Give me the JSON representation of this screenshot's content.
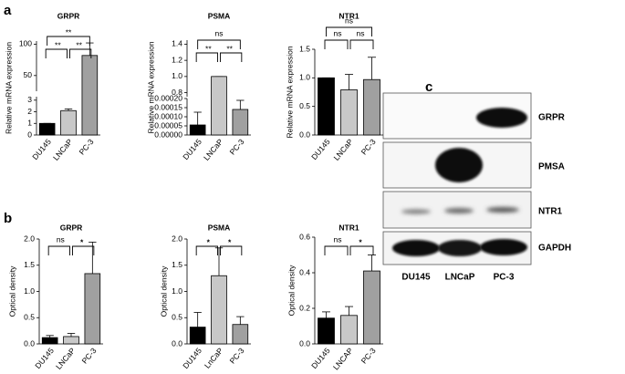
{
  "panel_labels": [
    "a",
    "b",
    "c"
  ],
  "chart_data": [
    {
      "type": "bar",
      "title": "GRPR",
      "y_label": "Relative mRNA expression",
      "categories": [
        "DU145",
        "LNCaP",
        "PC-3"
      ],
      "colors": [
        "#000000",
        "#c8c8c8",
        "#a0a0a0"
      ],
      "values": [
        1,
        2.1,
        82
      ],
      "errors": [
        0,
        0.15,
        20
      ],
      "y_break": {
        "lower": {
          "ylim": [
            0,
            3.3
          ],
          "yticks": [
            0,
            1,
            2,
            3
          ]
        },
        "upper": {
          "ylim": [
            25,
            105
          ],
          "yticks": [
            50,
            100
          ]
        }
      },
      "brackets": [
        {
          "label": "**",
          "between": [
            0,
            2
          ]
        },
        {
          "label": "**",
          "between": [
            0,
            1
          ]
        },
        {
          "label": "**",
          "between": [
            1,
            2
          ]
        }
      ]
    },
    {
      "type": "bar",
      "title": "PSMA",
      "y_label": "Relative mRNA expression",
      "categories": [
        "DU145",
        "LNCaP",
        "PC-3"
      ],
      "colors": [
        "#000000",
        "#c8c8c8",
        "#a0a0a0"
      ],
      "values": [
        5.5e-05,
        1.0,
        0.00014
      ],
      "errors": [
        7e-05,
        0,
        5e-05
      ],
      "y_break": {
        "lower": {
          "ylim": [
            0,
            0.0002
          ],
          "yticks": [
            {
              "value": 0,
              "label": "0.00000"
            },
            {
              "value": 5e-05,
              "label": "0.00005"
            },
            {
              "value": 0.0001,
              "label": "0.00010"
            },
            {
              "value": 0.00015,
              "label": "0.00015"
            },
            {
              "value": 0.0002,
              "label": "0.00020"
            }
          ]
        },
        "upper": {
          "ylim": [
            0.75,
            1.45
          ],
          "yticks": [
            0.8,
            {
              "value": 1,
              "label": "1.0"
            },
            1.2,
            1.4
          ]
        }
      },
      "brackets": [
        {
          "label": "ns",
          "between": [
            0,
            2
          ]
        },
        {
          "label": "**",
          "between": [
            0,
            1
          ]
        },
        {
          "label": "**",
          "between": [
            1,
            2
          ]
        }
      ]
    },
    {
      "type": "bar",
      "title": "NTR1",
      "y_label": "Relative mRNA expression",
      "categories": [
        "DU145",
        "LNCaP",
        "PC-3"
      ],
      "colors": [
        "#000000",
        "#c8c8c8",
        "#a0a0a0"
      ],
      "values": [
        1,
        0.79,
        0.97
      ],
      "errors": [
        0,
        0.27,
        0.39
      ],
      "ylim": [
        0,
        1.5
      ],
      "yticks": [
        {
          "value": 0,
          "label": "0.0"
        },
        0.5,
        {
          "value": 1,
          "label": "1.0"
        },
        1.5
      ],
      "brackets": [
        {
          "label": "ns",
          "between": [
            0,
            2
          ]
        },
        {
          "label": "ns",
          "between": [
            0,
            1
          ]
        },
        {
          "label": "ns",
          "between": [
            1,
            2
          ]
        }
      ]
    },
    {
      "type": "bar",
      "title": "GRPR",
      "y_label": "Optical density",
      "categories": [
        "DU145",
        "LNCaP",
        "PC-3"
      ],
      "colors": [
        "#000000",
        "#c8c8c8",
        "#a0a0a0"
      ],
      "values": [
        0.12,
        0.14,
        1.34
      ],
      "errors": [
        0.04,
        0.06,
        0.6
      ],
      "ylim": [
        0,
        2
      ],
      "yticks": [
        {
          "value": 0,
          "label": "0.0"
        },
        0.5,
        {
          "value": 1,
          "label": "1.0"
        },
        1.5,
        {
          "value": 2,
          "label": "2.0"
        }
      ],
      "brackets": [
        {
          "label": "ns",
          "between": [
            0,
            1
          ]
        },
        {
          "label": "*",
          "between": [
            1,
            2
          ]
        }
      ]
    },
    {
      "type": "bar",
      "title": "PSMA",
      "y_label": "Optical density",
      "categories": [
        "DU145",
        "LnCaP",
        "PC-3"
      ],
      "colors": [
        "#000000",
        "#c8c8c8",
        "#a0a0a0"
      ],
      "values": [
        0.32,
        1.3,
        0.37
      ],
      "errors": [
        0.28,
        0.53,
        0.15
      ],
      "ylim": [
        0,
        2
      ],
      "yticks": [
        {
          "value": 0,
          "label": "0.0"
        },
        0.5,
        {
          "value": 1,
          "label": "1.0"
        },
        1.5,
        {
          "value": 2,
          "label": "2.0"
        }
      ],
      "brackets": [
        {
          "label": "*",
          "between": [
            0,
            1
          ]
        },
        {
          "label": "*",
          "between": [
            1,
            2
          ]
        }
      ]
    },
    {
      "type": "bar",
      "title": "NTR1",
      "y_label": "Optical density",
      "categories": [
        "DU145",
        "LNCAP",
        "PC-3"
      ],
      "colors": [
        "#000000",
        "#c8c8c8",
        "#a0a0a0"
      ],
      "values": [
        0.145,
        0.16,
        0.41
      ],
      "errors": [
        0.035,
        0.05,
        0.09
      ],
      "ylim": [
        0,
        0.6
      ],
      "yticks": [
        {
          "value": 0,
          "label": "0.0"
        },
        0.2,
        0.4,
        0.6
      ],
      "brackets": [
        {
          "label": "ns",
          "between": [
            0,
            1
          ]
        },
        {
          "label": "*",
          "between": [
            1,
            2
          ]
        }
      ]
    }
  ],
  "blot": {
    "rows": [
      "GRPR",
      "PMSA",
      "NTR1",
      "GAPDH"
    ],
    "columns": [
      "DU145",
      "LNCaP",
      "PC-3"
    ]
  }
}
